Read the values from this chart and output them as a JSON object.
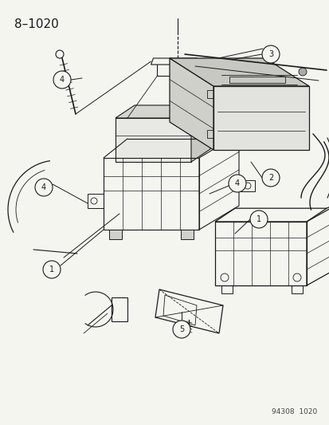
{
  "title": "8–1020",
  "footer": "94308  1020",
  "bg_color": "#f5f5f0",
  "line_color": "#1a1a1a",
  "title_fontsize": 11,
  "footer_fontsize": 6.5,
  "fig_width": 4.14,
  "fig_height": 5.33,
  "dpi": 100
}
